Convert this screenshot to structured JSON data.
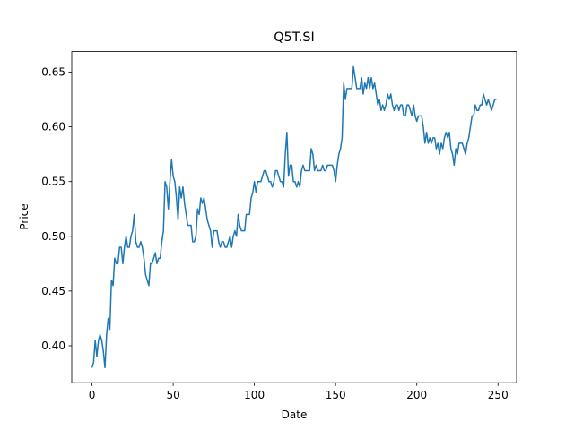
{
  "chart_data": {
    "type": "line",
    "title": "Q5T.SI",
    "xlabel": "Date",
    "ylabel": "Price",
    "x": [
      0,
      1,
      2,
      3,
      4,
      5,
      6,
      7,
      8,
      9,
      10,
      11,
      12,
      13,
      14,
      15,
      16,
      17,
      18,
      19,
      20,
      21,
      22,
      23,
      24,
      25,
      26,
      27,
      28,
      29,
      30,
      31,
      32,
      33,
      34,
      35,
      36,
      37,
      38,
      39,
      40,
      41,
      42,
      43,
      44,
      45,
      46,
      47,
      48,
      49,
      50,
      51,
      52,
      53,
      54,
      55,
      56,
      57,
      58,
      59,
      60,
      61,
      62,
      63,
      64,
      65,
      66,
      67,
      68,
      69,
      70,
      71,
      72,
      73,
      74,
      75,
      76,
      77,
      78,
      79,
      80,
      81,
      82,
      83,
      84,
      85,
      86,
      87,
      88,
      89,
      90,
      91,
      92,
      93,
      94,
      95,
      96,
      97,
      98,
      99,
      100,
      101,
      102,
      103,
      104,
      105,
      106,
      107,
      108,
      109,
      110,
      111,
      112,
      113,
      114,
      115,
      116,
      117,
      118,
      119,
      120,
      121,
      122,
      123,
      124,
      125,
      126,
      127,
      128,
      129,
      130,
      131,
      132,
      133,
      134,
      135,
      136,
      137,
      138,
      139,
      140,
      141,
      142,
      143,
      144,
      145,
      146,
      147,
      148,
      149,
      150,
      151,
      152,
      153,
      154,
      155,
      156,
      157,
      158,
      159,
      160,
      161,
      162,
      163,
      164,
      165,
      166,
      167,
      168,
      169,
      170,
      171,
      172,
      173,
      174,
      175,
      176,
      177,
      178,
      179,
      180,
      181,
      182,
      183,
      184,
      185,
      186,
      187,
      188,
      189,
      190,
      191,
      192,
      193,
      194,
      195,
      196,
      197,
      198,
      199,
      200,
      201,
      202,
      203,
      204,
      205,
      206,
      207,
      208,
      209,
      210,
      211,
      212,
      213,
      214,
      215,
      216,
      217,
      218,
      219,
      220,
      221,
      222,
      223,
      224,
      225,
      226,
      227,
      228,
      229,
      230,
      231,
      232,
      233,
      234,
      235,
      236,
      237,
      238,
      239,
      240,
      241,
      242,
      243,
      244,
      245,
      246,
      247,
      248,
      249
    ],
    "series": [
      {
        "color": "#1f77b4",
        "values": [
          0.38,
          0.385,
          0.405,
          0.39,
          0.405,
          0.41,
          0.405,
          0.395,
          0.38,
          0.41,
          0.425,
          0.415,
          0.46,
          0.455,
          0.48,
          0.475,
          0.475,
          0.49,
          0.49,
          0.475,
          0.49,
          0.5,
          0.49,
          0.49,
          0.5,
          0.505,
          0.52,
          0.495,
          0.49,
          0.49,
          0.495,
          0.49,
          0.48,
          0.465,
          0.46,
          0.455,
          0.475,
          0.475,
          0.48,
          0.485,
          0.475,
          0.48,
          0.48,
          0.495,
          0.505,
          0.55,
          0.545,
          0.525,
          0.55,
          0.57,
          0.555,
          0.55,
          0.535,
          0.515,
          0.545,
          0.535,
          0.545,
          0.53,
          0.52,
          0.51,
          0.51,
          0.51,
          0.495,
          0.495,
          0.5,
          0.525,
          0.52,
          0.535,
          0.53,
          0.535,
          0.525,
          0.515,
          0.51,
          0.505,
          0.49,
          0.505,
          0.505,
          0.505,
          0.495,
          0.49,
          0.495,
          0.495,
          0.49,
          0.49,
          0.495,
          0.5,
          0.49,
          0.5,
          0.505,
          0.5,
          0.52,
          0.51,
          0.505,
          0.505,
          0.505,
          0.52,
          0.52,
          0.52,
          0.535,
          0.54,
          0.55,
          0.54,
          0.55,
          0.55,
          0.55,
          0.555,
          0.56,
          0.56,
          0.555,
          0.55,
          0.55,
          0.545,
          0.55,
          0.56,
          0.56,
          0.555,
          0.55,
          0.55,
          0.545,
          0.575,
          0.595,
          0.555,
          0.565,
          0.565,
          0.55,
          0.55,
          0.545,
          0.55,
          0.545,
          0.56,
          0.565,
          0.56,
          0.56,
          0.56,
          0.56,
          0.58,
          0.575,
          0.56,
          0.565,
          0.56,
          0.56,
          0.56,
          0.565,
          0.56,
          0.56,
          0.565,
          0.565,
          0.565,
          0.565,
          0.56,
          0.55,
          0.565,
          0.575,
          0.58,
          0.59,
          0.64,
          0.625,
          0.635,
          0.635,
          0.635,
          0.635,
          0.655,
          0.645,
          0.635,
          0.635,
          0.635,
          0.645,
          0.63,
          0.64,
          0.635,
          0.645,
          0.635,
          0.645,
          0.635,
          0.64,
          0.63,
          0.62,
          0.625,
          0.615,
          0.62,
          0.615,
          0.62,
          0.63,
          0.625,
          0.63,
          0.62,
          0.615,
          0.62,
          0.62,
          0.615,
          0.62,
          0.62,
          0.61,
          0.61,
          0.62,
          0.62,
          0.615,
          0.61,
          0.62,
          0.61,
          0.605,
          0.61,
          0.61,
          0.61,
          0.6,
          0.585,
          0.595,
          0.585,
          0.59,
          0.585,
          0.59,
          0.59,
          0.58,
          0.585,
          0.575,
          0.585,
          0.58,
          0.59,
          0.595,
          0.59,
          0.595,
          0.58,
          0.575,
          0.565,
          0.58,
          0.575,
          0.585,
          0.585,
          0.585,
          0.58,
          0.575,
          0.585,
          0.59,
          0.6,
          0.61,
          0.61,
          0.62,
          0.615,
          0.615,
          0.62,
          0.62,
          0.63,
          0.625,
          0.62,
          0.625,
          0.62,
          0.615,
          0.62,
          0.625,
          0.625
        ]
      }
    ],
    "xlim": [
      -12.45,
      261.45
    ],
    "ylim": [
      0.36625,
      0.66875
    ],
    "xticks": [
      0,
      50,
      100,
      150,
      200,
      250
    ],
    "yticks": [
      {
        "value": 0.4,
        "label": "0.40"
      },
      0.45,
      {
        "value": 0.5,
        "label": "0.50"
      },
      0.55,
      {
        "value": 0.6,
        "label": "0.60"
      },
      0.65
    ]
  }
}
